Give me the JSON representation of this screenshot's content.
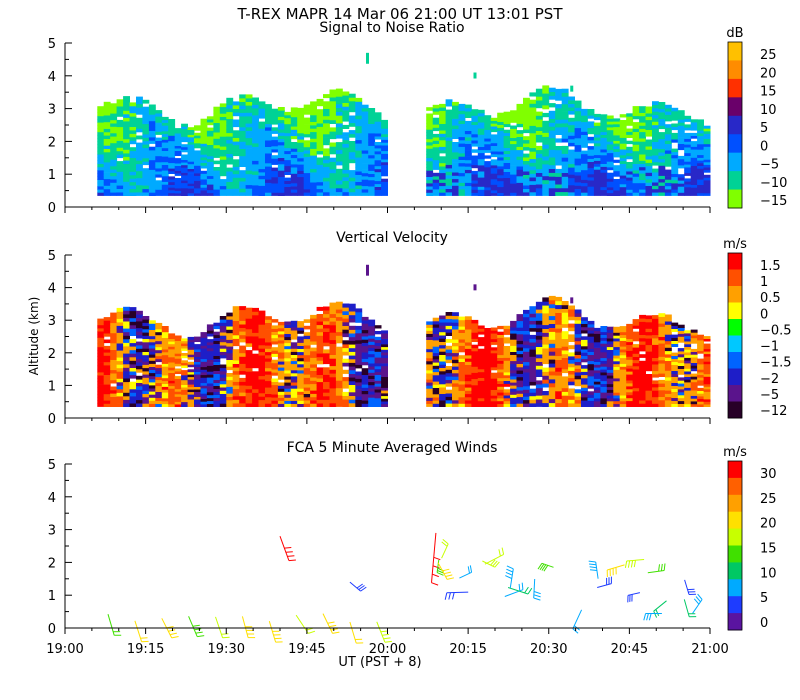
{
  "header": {
    "title": "T-REX   MAPR 14 Mar 06   21:00 UT   13:01   PST"
  },
  "time_axis": {
    "label": "UT  (PST + 8)",
    "ticks": [
      "19:00",
      "19:15",
      "19:30",
      "19:45",
      "20:00",
      "20:15",
      "20:30",
      "20:45",
      "21:00"
    ]
  },
  "ylabel": "Altitude (km)",
  "chart_data": [
    {
      "type": "heatmap",
      "title": "Signal to Noise Ratio",
      "xlabel": "UT  (PST + 8)",
      "ylabel": "",
      "xlim": [
        "19:00",
        "21:00"
      ],
      "ylim": [
        0,
        5
      ],
      "yticks": [
        "0",
        "1",
        "2",
        "3",
        "4",
        "5"
      ],
      "colorbar": {
        "unit": "dB",
        "labels": [
          "25",
          "20",
          "15",
          "10",
          "5",
          "0",
          "−5",
          "−10",
          "−15"
        ],
        "colors": [
          "#ffc000",
          "#ff8c00",
          "#ff3000",
          "#6a006a",
          "#2828c8",
          "#0050ff",
          "#00aaff",
          "#00d296",
          "#80ff00"
        ]
      },
      "data_gap": [
        "20:00",
        "20:07"
      ]
    },
    {
      "type": "heatmap",
      "title": "Vertical Velocity",
      "xlabel": "UT  (PST + 8)",
      "ylabel": "Altitude (km)",
      "xlim": [
        "19:00",
        "21:00"
      ],
      "ylim": [
        0,
        5
      ],
      "yticks": [
        "0",
        "1",
        "2",
        "3",
        "4",
        "5"
      ],
      "colorbar": {
        "unit": "m/s",
        "labels": [
          "1.5",
          "1",
          "0.5",
          "0",
          "−0.5",
          "−1",
          "−1.5",
          "−2",
          "−5",
          "−12"
        ],
        "colors": [
          "#ff0000",
          "#ff5000",
          "#ffa000",
          "#ffff00",
          "#00ff00",
          "#00c8ff",
          "#0064ff",
          "#1e1ec8",
          "#5a148c",
          "#280028"
        ]
      },
      "data_gap": [
        "20:00",
        "20:07"
      ]
    },
    {
      "type": "scatter",
      "title": "FCA 5 Minute Averaged Winds",
      "xlabel": "UT  (PST + 8)",
      "ylabel": "",
      "xlim": [
        "19:00",
        "21:00"
      ],
      "ylim": [
        0,
        5
      ],
      "yticks": [
        "0",
        "1",
        "2",
        "3",
        "4",
        "5"
      ],
      "colorbar": {
        "unit": "m/s",
        "labels": [
          "30",
          "25",
          "20",
          "15",
          "10",
          "5",
          "0"
        ],
        "colors": [
          "#ff0000",
          "#ff6000",
          "#ffa000",
          "#ffe000",
          "#c8ff00",
          "#40e000",
          "#00c864",
          "#00aaff",
          "#1e3cff",
          "#5a14a0"
        ]
      },
      "description": "Wind barbs at 5-minute intervals, colored by wind speed"
    }
  ]
}
